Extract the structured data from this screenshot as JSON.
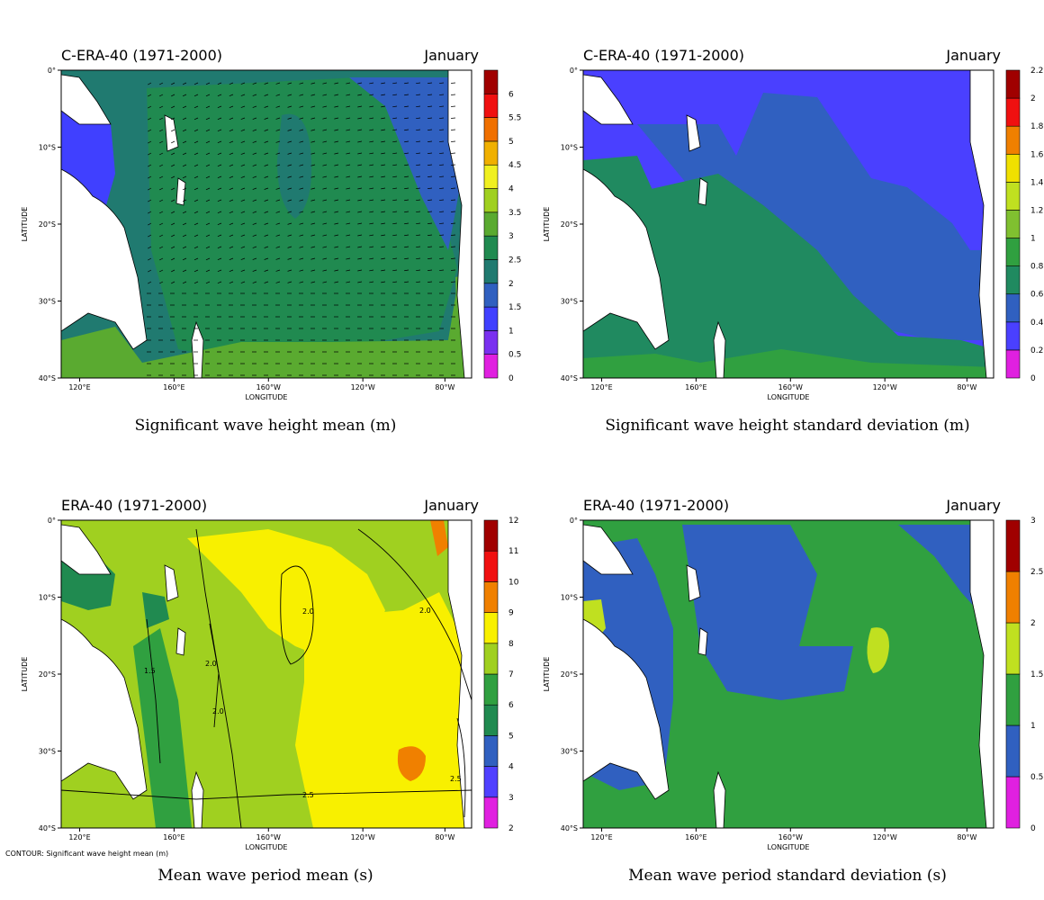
{
  "axes": {
    "xlabel": "LONGITUDE",
    "ylabel": "LATITUDE",
    "x_ticks": [
      "120°E",
      "160°E",
      "160°W",
      "120°W",
      "80°W"
    ],
    "y_ticks": [
      "0°",
      "10°S",
      "20°S",
      "30°S",
      "40°S"
    ]
  },
  "panels": [
    {
      "title": "C-ERA-40 (1971-2000)",
      "month": "January",
      "caption": "Significant wave height mean (m)",
      "colorbar": {
        "levels": [
          "0",
          "0.5",
          "1",
          "1.5",
          "2",
          "2.5",
          "3",
          "3.5",
          "4",
          "4.5",
          "5",
          "5.5",
          "6"
        ],
        "colors": [
          "#e020e0",
          "#7a30f0",
          "#4040ff",
          "#3060c0",
          "#207a70",
          "#208a50",
          "#5aaa30",
          "#a0d020",
          "#f0f020",
          "#f0b000",
          "#f07000",
          "#f01010",
          "#a00000"
        ]
      },
      "has_vectors": true
    },
    {
      "title": "C-ERA-40 (1971-2000)",
      "month": "January",
      "caption": "Significant wave height standard deviation (m)",
      "colorbar": {
        "levels": [
          "0",
          "0.2",
          "0.4",
          "0.6",
          "0.8",
          "1",
          "1.2",
          "1.4",
          "1.6",
          "1.8",
          "2",
          "2.2"
        ],
        "colors": [
          "#e020e0",
          "#4a40ff",
          "#3060c0",
          "#208a60",
          "#30a040",
          "#80c030",
          "#c0e020",
          "#f0e000",
          "#f08000",
          "#f01010",
          "#a00000"
        ]
      },
      "has_vectors": false
    },
    {
      "title": "ERA-40 (1971-2000)",
      "month": "January",
      "caption": "Mean wave period mean (s)",
      "contour_note": "CONTOUR: Significant wave height mean (m)",
      "contour_labels": [
        "2.0",
        "2.0",
        "2.0",
        "2.5",
        "2.5",
        "1.5",
        "2.0"
      ],
      "colorbar": {
        "levels": [
          "2",
          "3",
          "4",
          "5",
          "6",
          "7",
          "8",
          "9",
          "10",
          "11",
          "12"
        ],
        "colors": [
          "#e020e0",
          "#5040ff",
          "#3060c0",
          "#208a50",
          "#30a040",
          "#a0d020",
          "#f8f000",
          "#f08000",
          "#f01010",
          "#a00000"
        ]
      },
      "has_vectors": false
    },
    {
      "title": "ERA-40 (1971-2000)",
      "month": "January",
      "caption": "Mean wave period standard deviation (s)",
      "colorbar": {
        "levels": [
          "0",
          "0.5",
          "1",
          "1.5",
          "2",
          "2.5",
          "3"
        ],
        "colors": [
          "#e020e0",
          "#3060c0",
          "#30a040",
          "#c0e020",
          "#f08000",
          "#a00000"
        ]
      },
      "has_vectors": false
    }
  ]
}
